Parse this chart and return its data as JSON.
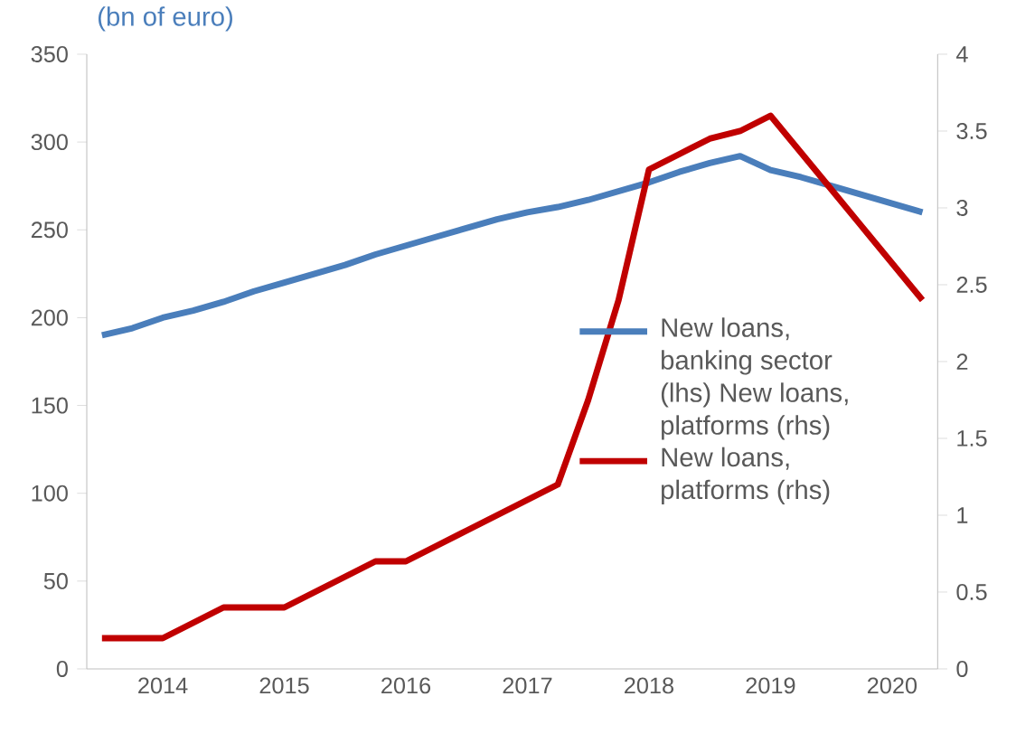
{
  "chart_data": {
    "type": "line",
    "title": "(bn of euro)",
    "categories": [
      null,
      null,
      "2014",
      null,
      null,
      null,
      "2015",
      null,
      null,
      null,
      "2016",
      null,
      null,
      null,
      "2017",
      null,
      null,
      null,
      "2018",
      null,
      null,
      null,
      "2019",
      null,
      null,
      null,
      "2020",
      null
    ],
    "series": [
      {
        "name": "New loans, banking sector (lhs) New loans, platforms (rhs)",
        "color": "#4a7ebb",
        "values": [
          190,
          194,
          200,
          204,
          209,
          215,
          220,
          225,
          230,
          236,
          241,
          246,
          251,
          256,
          260,
          263,
          267,
          272,
          277,
          283,
          288,
          292,
          284,
          280,
          275,
          270,
          265,
          260
        ]
      },
      {
        "name": "New loans, platforms (rhs)",
        "color": "#c00000",
        "axis": "y2",
        "values": [
          0.2,
          0.2,
          0.2,
          0.3,
          0.4,
          0.4,
          0.4,
          0.5,
          0.6,
          0.7,
          0.7,
          0.8,
          0.9,
          1.0,
          1.1,
          1.2,
          1.75,
          2.4,
          3.25,
          3.35,
          3.45,
          3.5,
          3.6,
          3.36,
          3.12,
          2.88,
          2.64,
          2.4
        ]
      }
    ],
    "ylim": [
      0,
      350
    ],
    "yticks": [
      0,
      50,
      100,
      150,
      200,
      250,
      300,
      350
    ],
    "y2lim": [
      0,
      4
    ],
    "y2ticks": [
      0,
      0.5,
      1,
      1.5,
      2,
      2.5,
      3,
      3.5,
      4
    ],
    "grid": false,
    "legend": "right",
    "marker": "none",
    "line_style": "solid"
  }
}
